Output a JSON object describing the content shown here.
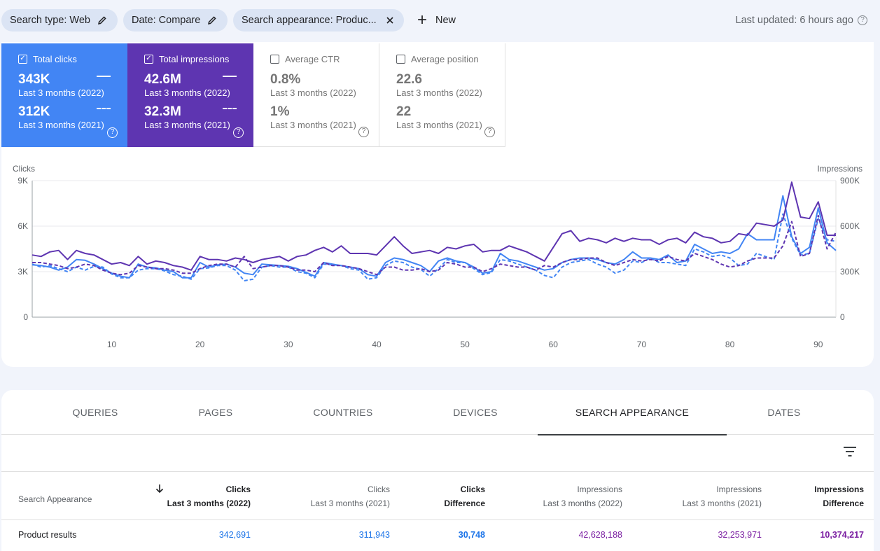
{
  "filters": {
    "chips": [
      {
        "label": "Search type: Web",
        "icon": "pencil-icon"
      },
      {
        "label": "Date: Compare",
        "icon": "pencil-icon"
      },
      {
        "label": "Search appearance: Produc...",
        "icon": "close-icon"
      }
    ],
    "new_label": "New",
    "last_updated": "Last updated: 6 hours ago"
  },
  "metrics": [
    {
      "label": "Total clicks",
      "checked": true,
      "value_current": "343K",
      "period_current": "Last 3 months (2022)",
      "value_previous": "312K",
      "period_previous": "Last 3 months (2021)"
    },
    {
      "label": "Total impressions",
      "checked": true,
      "value_current": "42.6M",
      "period_current": "Last 3 months (2022)",
      "value_previous": "32.3M",
      "period_previous": "Last 3 months (2021)"
    },
    {
      "label": "Average CTR",
      "checked": false,
      "value_current": "0.8%",
      "period_current": "Last 3 months (2022)",
      "value_previous": "1%",
      "period_previous": "Last 3 months (2021)"
    },
    {
      "label": "Average position",
      "checked": false,
      "value_current": "22.6",
      "period_current": "Last 3 months (2022)",
      "value_previous": "22",
      "period_previous": "Last 3 months (2021)"
    }
  ],
  "chart_data": {
    "type": "line",
    "ylabel_left": "Clicks",
    "ylabel_right": "Impressions",
    "y_left_ticks": [
      "0",
      "3K",
      "6K",
      "9K"
    ],
    "y_right_ticks": [
      "0",
      "300K",
      "600K",
      "900K"
    ],
    "ylim_left": [
      0,
      9000
    ],
    "ylim_right": [
      0,
      900000
    ],
    "x_ticks": [
      "10",
      "20",
      "30",
      "40",
      "50",
      "60",
      "70",
      "80",
      "90"
    ],
    "xlim": [
      1,
      92
    ],
    "grid": true,
    "colors": {
      "clicks": "#4285f4",
      "impressions": "#5e35b1"
    },
    "series": [
      {
        "name": "Clicks - Last 3 months (2022)",
        "axis": "left",
        "style": "solid",
        "color": "#4285f4",
        "values": [
          3450,
          3400,
          3300,
          3100,
          3300,
          3800,
          3750,
          3500,
          3200,
          2900,
          2700,
          2600,
          3500,
          3300,
          3250,
          3100,
          3000,
          2600,
          2600,
          3600,
          3300,
          3450,
          3500,
          3300,
          2900,
          2800,
          3500,
          3450,
          3400,
          3350,
          3200,
          2950,
          2700,
          3600,
          3500,
          3400,
          3300,
          3200,
          2800,
          2700,
          3600,
          3900,
          3800,
          3600,
          3400,
          3000,
          3700,
          3900,
          3700,
          3600,
          3300,
          2900,
          3000,
          4200,
          3800,
          3700,
          3500,
          3300,
          3100,
          3200,
          3600,
          3800,
          3900,
          3900,
          3800,
          3600,
          3500,
          3800,
          4300,
          3900,
          3900,
          3800,
          4100,
          3600,
          3700,
          4800,
          4500,
          4200,
          4300,
          4200,
          4500,
          5500,
          5100,
          5100,
          5100,
          8000,
          5300,
          4200,
          4600,
          7200,
          4900,
          4400
        ]
      },
      {
        "name": "Clicks - Last 3 months (2021)",
        "axis": "left",
        "style": "dashed",
        "color": "#4285f4",
        "values": [
          3500,
          3300,
          3400,
          3200,
          3000,
          3300,
          3100,
          3350,
          3300,
          2850,
          2600,
          2600,
          3100,
          3200,
          3200,
          3050,
          2800,
          2700,
          2500,
          3200,
          3250,
          3400,
          3400,
          3100,
          2400,
          2500,
          3300,
          3400,
          3300,
          3300,
          3000,
          2900,
          2600,
          3500,
          3450,
          3400,
          3200,
          3100,
          2500,
          2600,
          3400,
          3700,
          3600,
          3300,
          3150,
          2700,
          3200,
          3800,
          3600,
          3600,
          3200,
          2800,
          2950,
          3800,
          3700,
          3500,
          3300,
          3100,
          2750,
          2600,
          3300,
          3600,
          3700,
          3800,
          3500,
          3300,
          2900,
          3100,
          3700,
          3600,
          3900,
          3600,
          3600,
          3500,
          3400,
          4500,
          4300,
          4000,
          4100,
          3900,
          3400,
          3500,
          4200,
          4000,
          3800,
          6800,
          5200,
          4100,
          4200,
          6500,
          5100,
          5000
        ]
      },
      {
        "name": "Impressions - Last 3 months (2022)",
        "axis": "right",
        "style": "solid",
        "color": "#5e35b1",
        "values": [
          410000,
          400000,
          430000,
          440000,
          380000,
          440000,
          420000,
          410000,
          380000,
          350000,
          360000,
          340000,
          400000,
          350000,
          370000,
          360000,
          340000,
          330000,
          310000,
          400000,
          380000,
          380000,
          370000,
          390000,
          380000,
          360000,
          380000,
          390000,
          400000,
          370000,
          400000,
          410000,
          440000,
          460000,
          430000,
          470000,
          420000,
          420000,
          420000,
          410000,
          470000,
          530000,
          470000,
          420000,
          430000,
          440000,
          420000,
          460000,
          450000,
          470000,
          480000,
          430000,
          440000,
          440000,
          470000,
          450000,
          430000,
          400000,
          370000,
          460000,
          550000,
          570000,
          500000,
          520000,
          510000,
          490000,
          520000,
          500000,
          520000,
          510000,
          510000,
          480000,
          510000,
          520000,
          490000,
          560000,
          530000,
          520000,
          490000,
          500000,
          550000,
          540000,
          620000,
          610000,
          600000,
          640000,
          890000,
          660000,
          650000,
          760000,
          540000,
          540000
        ]
      },
      {
        "name": "Impressions - Last 3 months (2021)",
        "axis": "right",
        "style": "dashed",
        "color": "#5e35b1",
        "values": [
          360000,
          360000,
          350000,
          340000,
          320000,
          330000,
          350000,
          340000,
          310000,
          290000,
          280000,
          290000,
          340000,
          330000,
          320000,
          320000,
          310000,
          290000,
          290000,
          320000,
          340000,
          350000,
          350000,
          330000,
          400000,
          320000,
          330000,
          340000,
          340000,
          330000,
          310000,
          310000,
          300000,
          360000,
          340000,
          340000,
          330000,
          320000,
          300000,
          280000,
          330000,
          330000,
          310000,
          310000,
          320000,
          300000,
          310000,
          360000,
          350000,
          330000,
          330000,
          300000,
          320000,
          350000,
          340000,
          330000,
          330000,
          310000,
          340000,
          330000,
          360000,
          380000,
          380000,
          390000,
          390000,
          360000,
          340000,
          360000,
          380000,
          370000,
          380000,
          370000,
          400000,
          380000,
          370000,
          420000,
          400000,
          380000,
          350000,
          330000,
          340000,
          370000,
          390000,
          390000,
          390000,
          470000,
          630000,
          400000,
          420000,
          670000,
          450000,
          560000
        ]
      }
    ]
  },
  "tabs": [
    {
      "label": "QUERIES",
      "active": false
    },
    {
      "label": "PAGES",
      "active": false
    },
    {
      "label": "COUNTRIES",
      "active": false
    },
    {
      "label": "DEVICES",
      "active": false
    },
    {
      "label": "SEARCH APPEARANCE",
      "active": true
    },
    {
      "label": "DATES",
      "active": false
    }
  ],
  "table": {
    "columns": [
      {
        "line1": "Search Appearance",
        "line2": ""
      },
      {
        "line1": "Clicks",
        "line2": "Last 3 months (2022)",
        "sorted": true
      },
      {
        "line1": "Clicks",
        "line2": "Last 3 months (2021)"
      },
      {
        "line1": "Clicks",
        "line2": "Difference"
      },
      {
        "line1": "Impressions",
        "line2": "Last 3 months (2022)"
      },
      {
        "line1": "Impressions",
        "line2": "Last 3 months (2021)"
      },
      {
        "line1": "Impressions",
        "line2": "Difference"
      }
    ],
    "rows": [
      [
        "Product results",
        "342,691",
        "311,943",
        "30,748",
        "42,628,188",
        "32,253,971",
        "10,374,217"
      ]
    ]
  }
}
